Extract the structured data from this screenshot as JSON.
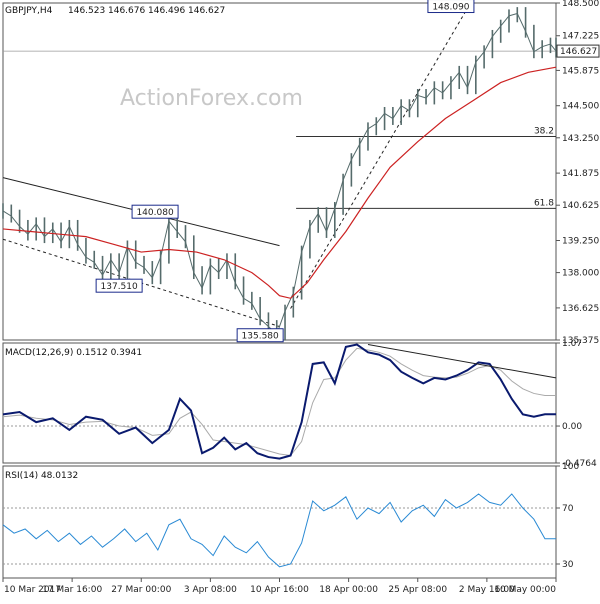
{
  "chart_data": [
    {
      "type": "line",
      "panel": "price",
      "symbol": "GBPJPY,H4",
      "ohlc": [
        "146.523",
        "146.676",
        "146.496",
        "146.627"
      ],
      "watermark": "ActionForex.com",
      "ylim": [
        135.375,
        148.5
      ],
      "y_ticks": [
        "148.500",
        "147.225",
        "145.875",
        "144.500",
        "143.250",
        "141.875",
        "140.625",
        "139.250",
        "138.000",
        "136.625",
        "135.375"
      ],
      "last_price_label": "146.627",
      "last_price": 146.627,
      "x_labels": [
        "10 Mar 2017",
        "17 Mar 16:00",
        "27 Mar 00:00",
        "3 Apr 08:00",
        "10 Apr 16:00",
        "18 Apr 00:00",
        "25 Apr 08:00",
        "2 May 16:00",
        "10 May 00:00"
      ],
      "x_range": [
        0,
        100
      ],
      "x_label_positions": [
        0,
        12.5,
        25,
        37.5,
        50,
        62.5,
        75,
        87.5,
        100
      ],
      "series": [
        {
          "color": "#556b6b",
          "x": [
            0,
            1.5,
            3,
            4.5,
            6,
            7.5,
            9,
            10.5,
            12,
            13.5,
            15,
            16.5,
            18,
            19.5,
            21,
            22.5,
            24,
            25.5,
            27,
            28.5,
            30,
            31.5,
            33,
            34.5,
            36,
            37.5,
            39,
            40.5,
            42,
            43.5,
            45,
            46.5,
            48,
            49.5,
            51,
            52.5,
            54,
            55.5,
            57,
            58.5,
            60,
            61.5,
            63,
            64.5,
            66,
            67.5,
            69,
            70.5,
            72,
            73.5,
            75,
            76.5,
            78,
            79.5,
            81,
            82.5,
            84,
            85.5,
            87,
            88.5,
            90,
            91.5,
            93,
            94.5,
            96,
            97.5,
            99,
            100
          ],
          "values": [
            140.4,
            140.2,
            139.8,
            139.5,
            139.9,
            139.4,
            139.7,
            139.2,
            139.8,
            139.1,
            138.6,
            138.4,
            137.9,
            138.5,
            138.0,
            139.0,
            138.4,
            138.2,
            137.8,
            138.6,
            140.0,
            139.6,
            139.2,
            138.0,
            137.4,
            138.3,
            138.0,
            138.5,
            137.6,
            137.0,
            136.8,
            136.2,
            135.9,
            135.6,
            136.5,
            137.2,
            138.8,
            139.8,
            140.3,
            139.6,
            140.5,
            141.6,
            142.4,
            143.0,
            143.6,
            143.8,
            144.2,
            144.0,
            144.5,
            144.3,
            144.9,
            144.8,
            145.2,
            145.0,
            145.4,
            145.8,
            145.2,
            146.2,
            146.6,
            147.2,
            147.6,
            148.0,
            148.09,
            147.4,
            146.6,
            146.8,
            146.9,
            146.627
          ]
        },
        {
          "color": "#cc2222",
          "x": [
            0,
            5,
            10,
            15,
            20,
            25,
            30,
            35,
            40,
            45,
            48,
            50,
            52,
            55,
            58,
            62,
            66,
            70,
            75,
            80,
            85,
            90,
            95,
            100
          ],
          "values": [
            139.7,
            139.6,
            139.5,
            139.4,
            139.1,
            138.8,
            138.9,
            138.8,
            138.5,
            138.0,
            137.5,
            137.1,
            137.0,
            137.6,
            138.5,
            139.6,
            140.9,
            142.1,
            143.1,
            144.0,
            144.7,
            145.4,
            145.8,
            146.0
          ]
        }
      ],
      "trendlines": [
        {
          "points": [
            [
              0,
              141.7
            ],
            [
              50,
              139.05
            ]
          ]
        },
        {
          "points": [
            [
              0,
              139.3
            ],
            [
              50,
              135.9
            ]
          ],
          "dashed": true
        },
        {
          "points": [
            [
              52,
              136.6
            ],
            [
              84,
              148.3
            ]
          ],
          "dashed": true
        }
      ],
      "fib_levels": [
        {
          "label": "38.2",
          "value": 143.3,
          "x_start": 53
        },
        {
          "label": "61.8",
          "value": 140.5,
          "x_start": 53
        }
      ],
      "annotations": [
        {
          "text": "148.090",
          "x": 81,
          "y": 148.09
        },
        {
          "text": "140.080",
          "x": 27.5,
          "y": 140.08
        },
        {
          "text": "137.510",
          "x": 21,
          "y": 137.51
        },
        {
          "text": "135.580",
          "x": 46.5,
          "y": 135.58
        }
      ],
      "color_bars": "#556b6b",
      "color_ma": "#cc2222",
      "grid": false
    },
    {
      "type": "line",
      "panel": "macd",
      "title": "MACD(12,26,9) 0.1512 0.3941",
      "ylim": [
        -0.4764,
        1.07
      ],
      "y_ticks": [
        "1.07",
        "0.00",
        "-0.4764"
      ],
      "zero_line": 0,
      "x": [
        0,
        3,
        6,
        9,
        12,
        15,
        18,
        21,
        24,
        27,
        30,
        32,
        34,
        36,
        38,
        40,
        42,
        44,
        46,
        48,
        50,
        52,
        54,
        56,
        58,
        60,
        62,
        64,
        66,
        68,
        70,
        72,
        74,
        76,
        78,
        80,
        82,
        84,
        86,
        88,
        90,
        92,
        94,
        96,
        98,
        100
      ],
      "series": [
        {
          "name": "MACD",
          "color": "#0a1a6e",
          "values": [
            0.15,
            0.18,
            0.05,
            0.1,
            -0.05,
            0.12,
            0.08,
            -0.1,
            -0.02,
            -0.22,
            -0.05,
            0.35,
            0.2,
            -0.35,
            -0.28,
            -0.15,
            -0.3,
            -0.22,
            -0.35,
            -0.4,
            -0.42,
            -0.38,
            0.05,
            0.8,
            0.82,
            0.55,
            1.02,
            1.05,
            0.95,
            0.92,
            0.85,
            0.7,
            0.62,
            0.55,
            0.62,
            0.6,
            0.65,
            0.72,
            0.82,
            0.8,
            0.6,
            0.35,
            0.15,
            0.12,
            0.1512,
            0.1512
          ]
        },
        {
          "name": "Signal",
          "color": "#aaaaaa",
          "values": [
            0.12,
            0.14,
            0.1,
            0.08,
            0.02,
            0.05,
            0.06,
            0.0,
            -0.02,
            -0.12,
            -0.1,
            0.1,
            0.18,
            0.02,
            -0.18,
            -0.2,
            -0.22,
            -0.24,
            -0.28,
            -0.32,
            -0.36,
            -0.38,
            -0.2,
            0.3,
            0.6,
            0.62,
            0.85,
            1.0,
            0.98,
            0.95,
            0.9,
            0.8,
            0.72,
            0.65,
            0.63,
            0.62,
            0.63,
            0.68,
            0.75,
            0.78,
            0.72,
            0.58,
            0.48,
            0.42,
            0.3941,
            0.3941
          ]
        }
      ],
      "trendline": {
        "points": [
          [
            66,
            1.05
          ],
          [
            100,
            0.62
          ]
        ]
      }
    },
    {
      "type": "line",
      "panel": "rsi",
      "title": "RSI(14) 48.0132",
      "ylim": [
        20,
        100
      ],
      "y_ticks": [
        "100",
        "70",
        "30"
      ],
      "levels": [
        70,
        30
      ],
      "x": [
        0,
        2,
        4,
        6,
        8,
        10,
        12,
        14,
        16,
        18,
        20,
        22,
        24,
        26,
        28,
        30,
        32,
        34,
        36,
        38,
        40,
        42,
        44,
        46,
        48,
        50,
        52,
        54,
        56,
        58,
        60,
        62,
        64,
        66,
        68,
        70,
        72,
        74,
        76,
        78,
        80,
        82,
        84,
        86,
        88,
        90,
        92,
        94,
        96,
        98,
        100
      ],
      "series": [
        {
          "name": "RSI",
          "color": "#2a8ad4",
          "values": [
            58,
            52,
            55,
            48,
            54,
            46,
            52,
            44,
            50,
            42,
            48,
            55,
            46,
            52,
            40,
            58,
            62,
            48,
            44,
            36,
            50,
            42,
            38,
            46,
            35,
            28,
            30,
            45,
            75,
            68,
            72,
            78,
            62,
            70,
            66,
            74,
            60,
            68,
            72,
            64,
            76,
            70,
            74,
            80,
            74,
            72,
            80,
            70,
            62,
            48,
            48.0132
          ]
        }
      ]
    }
  ]
}
